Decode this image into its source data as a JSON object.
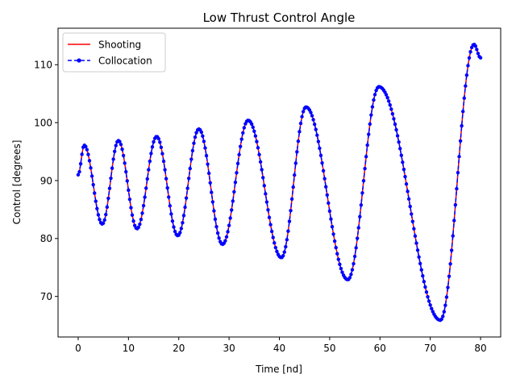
{
  "chart_data": {
    "type": "line",
    "title": "Low Thrust Control Angle",
    "xlabel": "Time [nd]",
    "ylabel": "Control [degrees]",
    "xlim": [
      -4,
      84
    ],
    "ylim": [
      63,
      116.3
    ],
    "xticks": [
      0,
      10,
      20,
      30,
      40,
      50,
      60,
      70,
      80
    ],
    "yticks": [
      70,
      80,
      90,
      100,
      110
    ],
    "grid": false,
    "legend_position": "top-left",
    "keypoints": {
      "x": [
        0,
        1.2,
        4.8,
        8.0,
        11.7,
        15.6,
        19.8,
        24.0,
        28.7,
        33.8,
        40.4,
        45.3,
        53.6,
        59.8,
        72.0,
        78.7,
        80.0
      ],
      "y": [
        91.0,
        96.1,
        82.5,
        96.9,
        81.7,
        97.6,
        80.5,
        98.9,
        79.0,
        100.4,
        76.7,
        102.7,
        72.9,
        106.2,
        65.9,
        113.5,
        111.2
      ]
    },
    "series": [
      {
        "name": "Shooting",
        "color": "#ff0000",
        "linestyle": "solid",
        "marker": "none"
      },
      {
        "name": "Collocation",
        "color": "#0000ff",
        "linestyle": "dashed",
        "marker": "point"
      }
    ]
  }
}
